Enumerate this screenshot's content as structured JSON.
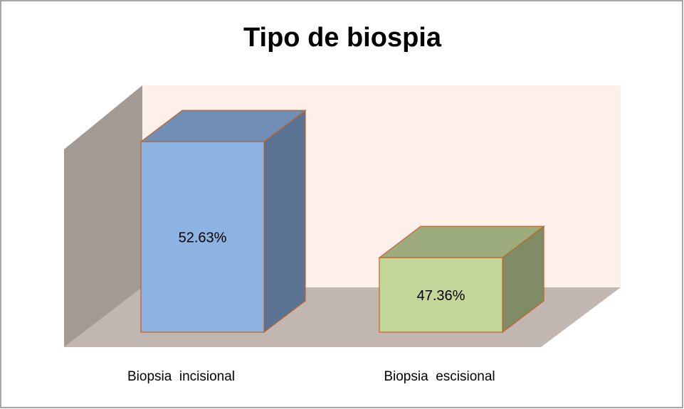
{
  "chart_data": {
    "type": "bar3d",
    "title": "Tipo de biospia",
    "categories": [
      "Biopsia  incisional",
      "Biopsia  escisional"
    ],
    "values": [
      52.63,
      47.36
    ],
    "value_labels": [
      "52.63%",
      "47.36%"
    ],
    "colors": [
      "#8db3e2",
      "#c4d79b"
    ],
    "ylim": [
      43.97,
      53.77
    ]
  }
}
